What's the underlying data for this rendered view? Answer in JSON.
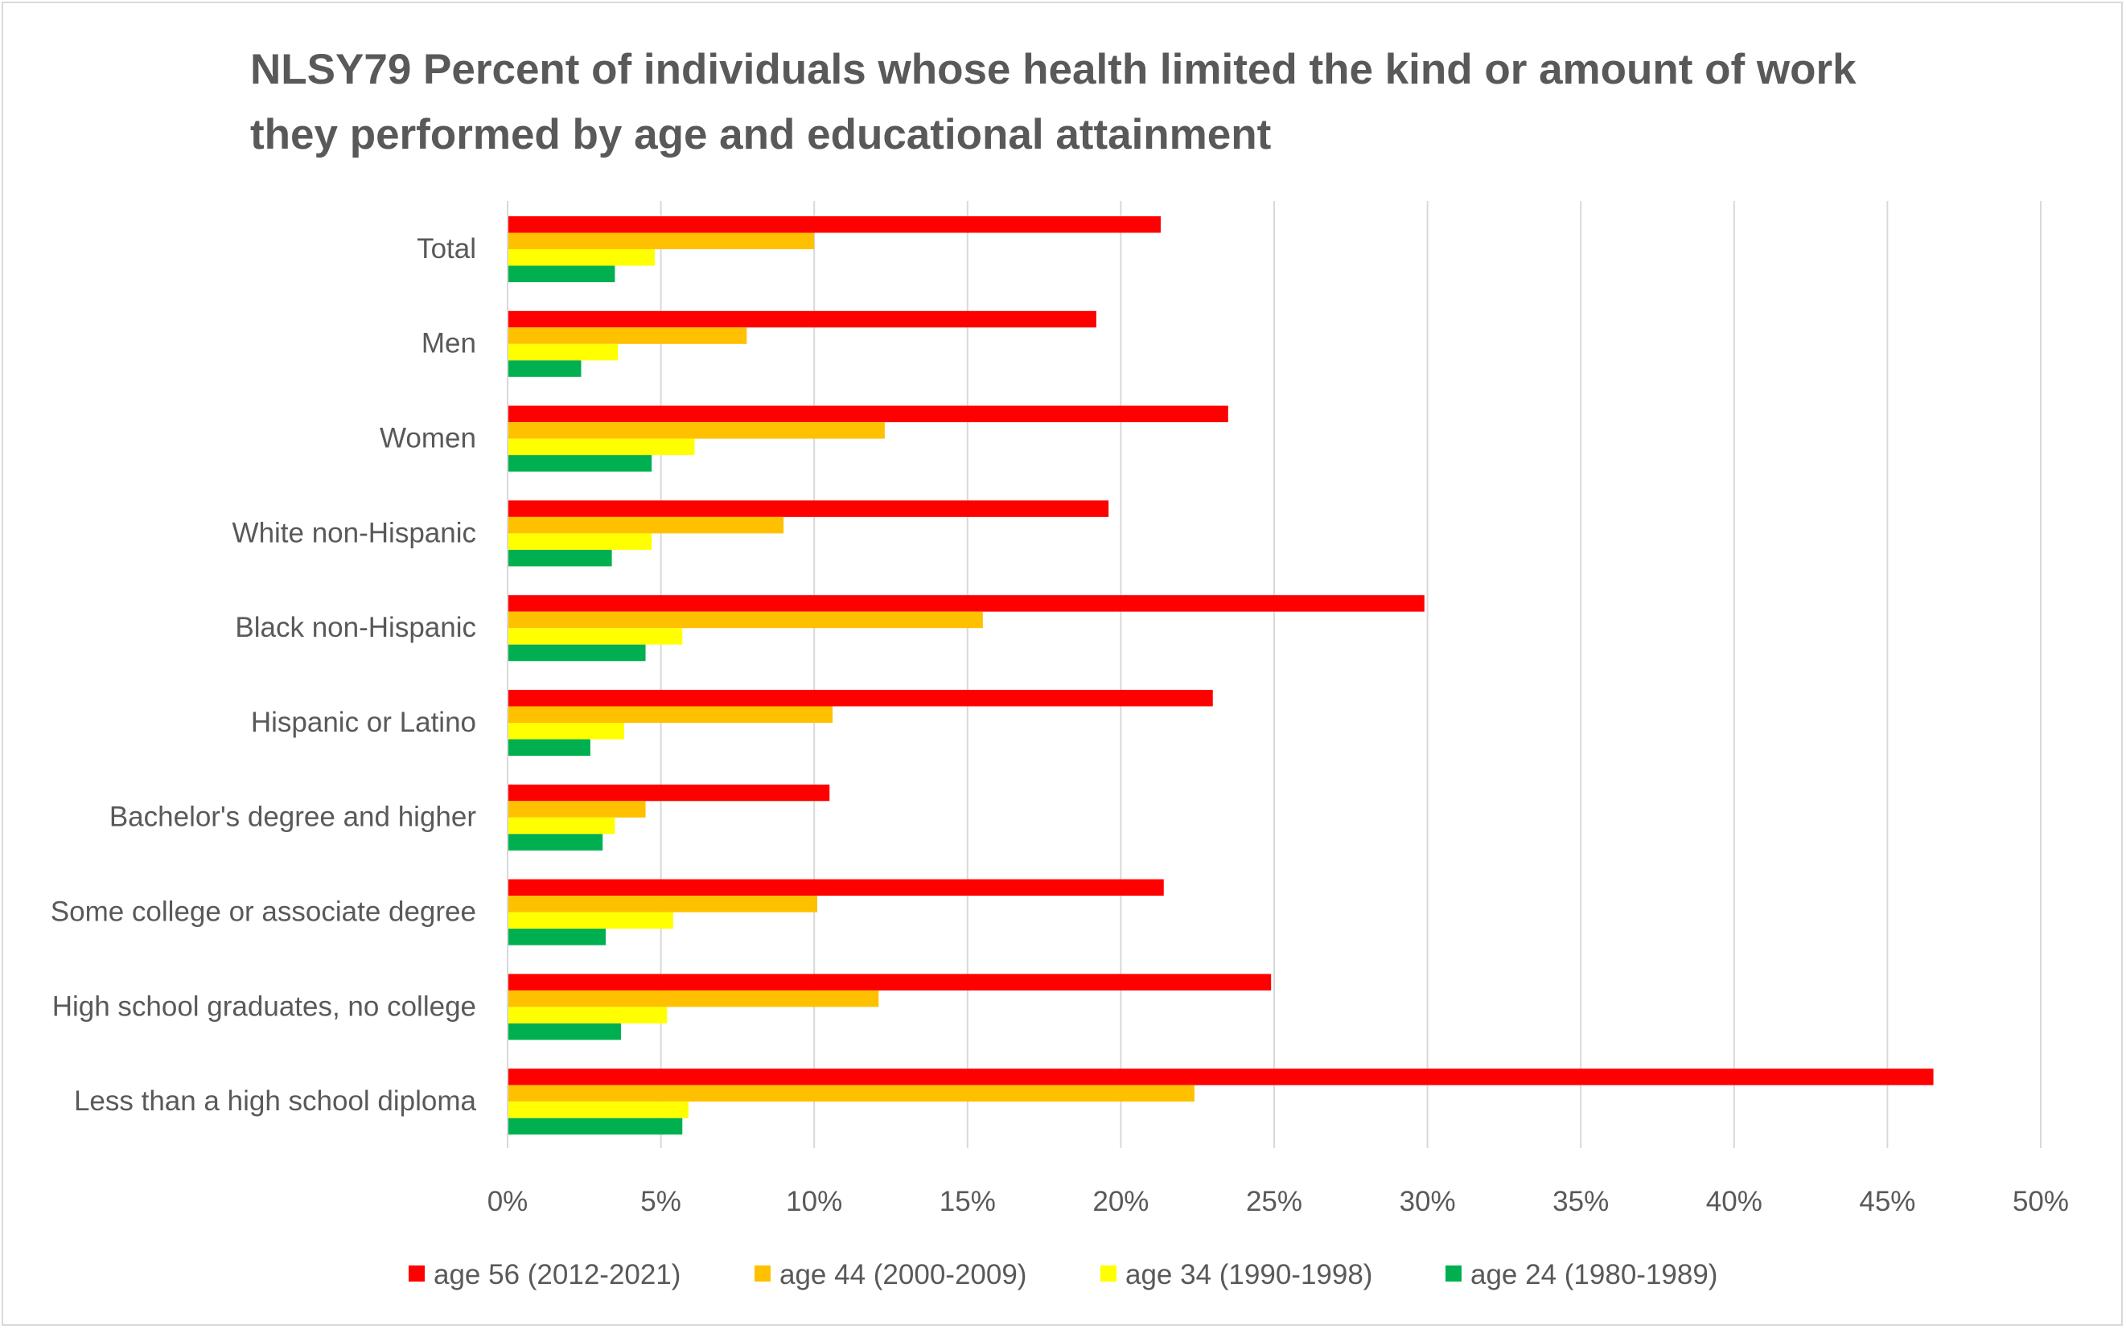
{
  "chart_data": {
    "type": "bar",
    "orientation": "horizontal",
    "title": "NLSY79 Percent of individuals whose health limited the kind or amount of work they performed by age and educational attainment",
    "categories": [
      "Total",
      "Men",
      "Women",
      "White non-Hispanic",
      "Black non-Hispanic",
      "Hispanic or Latino",
      "Bachelor's degree and higher",
      "Some college or associate degree",
      "High school graduates, no college",
      "Less than a high school diploma"
    ],
    "series": [
      {
        "name": "age 56 (2012-2021)",
        "color": "#ff0000",
        "values": [
          21.3,
          19.2,
          23.5,
          19.6,
          29.9,
          23.0,
          10.5,
          21.4,
          24.9,
          46.5
        ]
      },
      {
        "name": "age 44 (2000-2009)",
        "color": "#ffc000",
        "values": [
          10.0,
          7.8,
          12.3,
          9.0,
          15.5,
          10.6,
          4.5,
          10.1,
          12.1,
          22.4
        ]
      },
      {
        "name": "age 34 (1990-1998)",
        "color": "#ffff00",
        "values": [
          4.8,
          3.6,
          6.1,
          4.7,
          5.7,
          3.8,
          3.5,
          5.4,
          5.2,
          5.9
        ]
      },
      {
        "name": "age 24 (1980-1989)",
        "color": "#00b050",
        "values": [
          3.5,
          2.4,
          4.7,
          3.4,
          4.5,
          2.7,
          3.1,
          3.2,
          3.7,
          5.7
        ]
      }
    ],
    "xlim": [
      0,
      50
    ],
    "xticks": [
      "0%",
      "5%",
      "10%",
      "15%",
      "20%",
      "25%",
      "30%",
      "35%",
      "40%",
      "45%",
      "50%"
    ],
    "grid": true,
    "legend_position": "bottom"
  }
}
